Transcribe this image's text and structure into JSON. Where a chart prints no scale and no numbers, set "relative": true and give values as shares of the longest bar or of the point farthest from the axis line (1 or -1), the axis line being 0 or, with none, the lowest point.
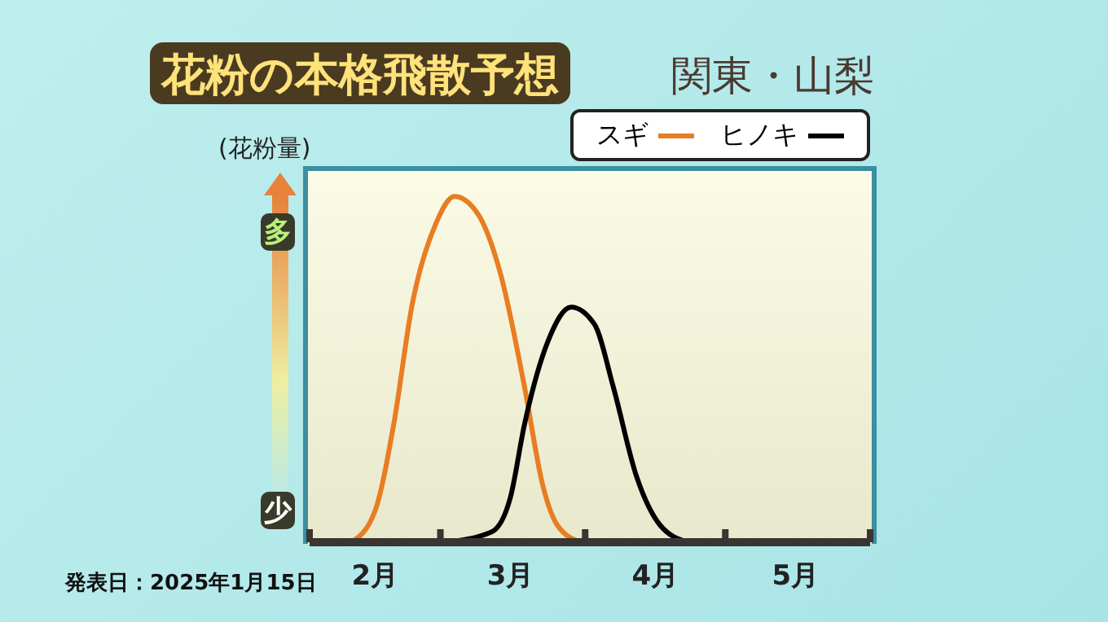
{
  "chart_data": {
    "type": "line",
    "title": "花粉の本格飛散予想",
    "subtitle": "関東・山梨",
    "ylabel": "(花粉量)",
    "relative": true,
    "legend": "top right",
    "grid": false,
    "marker": "none",
    "line_style": "solid",
    "xlim": [
      "--02-01",
      "--06-01"
    ],
    "xticks": [
      {
        "value": "--02-01",
        "label": null
      },
      {
        "value": "--02-15",
        "label": "2月"
      },
      {
        "value": "--03-01",
        "label": null
      },
      {
        "value": "--03-16",
        "label": "3月"
      },
      {
        "value": "--04-01",
        "label": null
      },
      {
        "value": "--04-16",
        "label": "4月"
      },
      {
        "value": "--05-01",
        "label": null
      },
      {
        "value": "--05-16",
        "label": "5月"
      },
      {
        "value": "--06-01",
        "label": null
      }
    ],
    "annotations": [
      "多",
      "少",
      "発表日：2025年1月15日"
    ],
    "series": [
      {
        "name": "スギ",
        "color": "#e87d22",
        "x": [
          "--02-10",
          "--02-15",
          "--02-19",
          "--02-23",
          "--02-28",
          "--03-04",
          "--03-09",
          "--03-14",
          "--03-19",
          "--03-23",
          "--03-26",
          "--03-31"
        ],
        "values": [
          0,
          0.09,
          0.34,
          0.69,
          0.92,
          1,
          0.95,
          0.77,
          0.45,
          0.16,
          0.05,
          0
        ]
      },
      {
        "name": "ヒノキ",
        "color": "#000000",
        "x": [
          "--03-02",
          "--03-12",
          "--03-16",
          "--03-19",
          "--03-24",
          "--03-29",
          "--04-03",
          "--04-07",
          "--04-12",
          "--04-17",
          "--04-23"
        ],
        "values": [
          0,
          0.03,
          0.13,
          0.34,
          0.58,
          0.68,
          0.63,
          0.45,
          0.19,
          0.05,
          0
        ]
      }
    ]
  }
}
